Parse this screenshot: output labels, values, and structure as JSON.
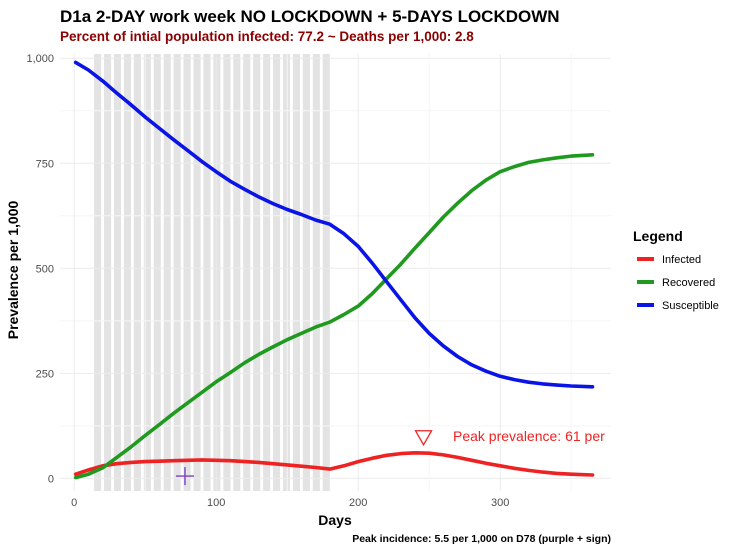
{
  "chart_data": {
    "type": "line",
    "title": "D1a  2-DAY work week NO LOCKDOWN + 5-DAYS LOCKDOWN",
    "subtitle": "Percent of intial population infected: 77.2  ~   Deaths per 1,000: 2.8",
    "xlabel": "Days",
    "ylabel": "Prevalence per 1,000",
    "caption": "Peak incidence:  5.5 per 1,000 on D78 (purple + sign)",
    "xlim": [
      -10,
      378
    ],
    "ylim": [
      -30,
      1010
    ],
    "x_ticks": [
      0,
      100,
      200,
      300
    ],
    "y_ticks": [
      0,
      250,
      500,
      750,
      1000
    ],
    "y_tick_labels": [
      "0",
      "250",
      "500",
      "750",
      "1,000"
    ],
    "grid": true,
    "legend": {
      "title": "Legend",
      "placement": "right",
      "entries": [
        "Infected",
        "Recovered",
        "Susceptible"
      ]
    },
    "lockdown_bands": {
      "start_day": 14,
      "end_day": 180,
      "cycle_days": 7,
      "lockdown_days": 5,
      "color": "#e3e3e3"
    },
    "series": [
      {
        "name": "Infected",
        "color": "#ee2222",
        "x": [
          1,
          10,
          20,
          30,
          40,
          50,
          60,
          70,
          80,
          90,
          100,
          110,
          120,
          130,
          140,
          150,
          160,
          170,
          180,
          190,
          200,
          210,
          220,
          230,
          240,
          250,
          260,
          270,
          280,
          290,
          300,
          310,
          320,
          330,
          340,
          350,
          365
        ],
        "y": [
          10,
          20,
          30,
          35,
          38,
          40,
          41,
          42,
          43,
          44,
          43,
          42,
          40,
          38,
          35,
          32,
          29,
          26,
          22,
          30,
          40,
          48,
          55,
          59,
          61,
          60,
          56,
          50,
          43,
          36,
          30,
          24,
          19,
          15,
          12,
          10,
          8
        ]
      },
      {
        "name": "Recovered",
        "color": "#1f9a1f",
        "x": [
          1,
          10,
          20,
          30,
          40,
          50,
          60,
          70,
          80,
          90,
          100,
          110,
          120,
          130,
          140,
          150,
          160,
          170,
          180,
          190,
          200,
          210,
          220,
          230,
          240,
          250,
          260,
          270,
          280,
          290,
          300,
          310,
          320,
          330,
          340,
          350,
          365
        ],
        "y": [
          2,
          10,
          25,
          50,
          75,
          102,
          128,
          155,
          180,
          205,
          230,
          252,
          275,
          295,
          313,
          330,
          345,
          360,
          372,
          390,
          410,
          440,
          475,
          510,
          548,
          585,
          622,
          655,
          685,
          710,
          730,
          742,
          752,
          758,
          763,
          767,
          770
        ]
      },
      {
        "name": "Susceptible",
        "color": "#0a14e6",
        "x": [
          1,
          10,
          20,
          30,
          40,
          50,
          60,
          70,
          80,
          90,
          100,
          110,
          120,
          130,
          140,
          150,
          160,
          170,
          180,
          190,
          200,
          210,
          220,
          230,
          240,
          250,
          260,
          270,
          280,
          290,
          300,
          310,
          320,
          330,
          340,
          350,
          365
        ],
        "y": [
          990,
          972,
          946,
          917,
          889,
          860,
          833,
          806,
          780,
          754,
          730,
          707,
          688,
          670,
          654,
          640,
          628,
          615,
          605,
          582,
          552,
          512,
          468,
          425,
          382,
          345,
          315,
          290,
          270,
          255,
          243,
          235,
          229,
          225,
          222,
          220,
          218
        ]
      }
    ],
    "annotations": {
      "peak_prevalence_label": "Peak prevalence: 61 per",
      "peak_prevalence_point": {
        "x": 246,
        "y": 61,
        "marker": "open-triangle-down",
        "color": "#ee2222"
      },
      "peak_incidence_point": {
        "x": 78,
        "y": 5.5,
        "marker": "plus",
        "color": "#7b3fc4"
      }
    }
  }
}
